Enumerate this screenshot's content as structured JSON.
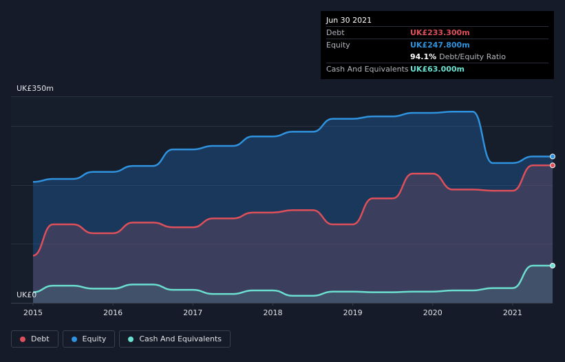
{
  "tooltip": {
    "date": "Jun 30 2021",
    "debt_label": "Debt",
    "debt_value": "UK£233.300m",
    "equity_label": "Equity",
    "equity_value": "UK£247.800m",
    "ratio_value": "94.1%",
    "ratio_label": "Debt/Equity Ratio",
    "cash_label": "Cash And Equivalents",
    "cash_value": "UK£63.000m"
  },
  "colors": {
    "debt": "#e0505a",
    "equity": "#2f93e0",
    "cash": "#6ce0d0",
    "background": "#151b28"
  },
  "legend": {
    "debt": "Debt",
    "equity": "Equity",
    "cash": "Cash And Equivalents"
  },
  "chart_data": {
    "type": "area",
    "title": "",
    "xlabel": "",
    "ylabel": "",
    "ylim": [
      0,
      350
    ],
    "y_tick_labels": [
      "UK£350m",
      "UK£0"
    ],
    "x_ticks": [
      2015,
      2016,
      2017,
      2018,
      2019,
      2020,
      2021
    ],
    "x_range": [
      2015.0,
      2021.5
    ],
    "grid": true,
    "legend_position": "bottom-left",
    "series": [
      {
        "name": "Equity",
        "x": [
          2015.0,
          2015.25,
          2015.5,
          2015.75,
          2016.0,
          2016.25,
          2016.5,
          2016.75,
          2017.0,
          2017.25,
          2017.5,
          2017.75,
          2018.0,
          2018.25,
          2018.5,
          2018.75,
          2019.0,
          2019.25,
          2019.5,
          2019.75,
          2020.0,
          2020.25,
          2020.5,
          2020.75,
          2021.0,
          2021.25,
          2021.5
        ],
        "values": [
          205,
          210,
          210,
          222,
          222,
          232,
          232,
          260,
          260,
          266,
          266,
          282,
          282,
          290,
          290,
          312,
          312,
          316,
          316,
          322,
          322,
          324,
          324,
          237,
          237,
          248,
          248
        ]
      },
      {
        "name": "Debt",
        "x": [
          2015.0,
          2015.25,
          2015.5,
          2015.75,
          2016.0,
          2016.25,
          2016.5,
          2016.75,
          2017.0,
          2017.25,
          2017.5,
          2017.75,
          2018.0,
          2018.25,
          2018.5,
          2018.75,
          2019.0,
          2019.25,
          2019.5,
          2019.75,
          2020.0,
          2020.25,
          2020.5,
          2020.75,
          2021.0,
          2021.25,
          2021.5
        ],
        "values": [
          80,
          133,
          133,
          118,
          118,
          136,
          136,
          128,
          128,
          143,
          143,
          153,
          153,
          157,
          157,
          133,
          133,
          177,
          177,
          219,
          219,
          192,
          192,
          190,
          190,
          233,
          233
        ]
      },
      {
        "name": "Cash And Equivalents",
        "x": [
          2015.0,
          2015.25,
          2015.5,
          2015.75,
          2016.0,
          2016.25,
          2016.5,
          2016.75,
          2017.0,
          2017.25,
          2017.5,
          2017.75,
          2018.0,
          2018.25,
          2018.5,
          2018.75,
          2019.0,
          2019.25,
          2019.5,
          2019.75,
          2020.0,
          2020.25,
          2020.5,
          2020.75,
          2021.0,
          2021.25,
          2021.5
        ],
        "values": [
          18,
          29,
          29,
          24,
          24,
          31,
          31,
          22,
          22,
          15,
          15,
          21,
          21,
          12,
          12,
          19,
          19,
          18,
          18,
          19,
          19,
          21,
          21,
          25,
          25,
          63,
          63
        ]
      }
    ]
  }
}
